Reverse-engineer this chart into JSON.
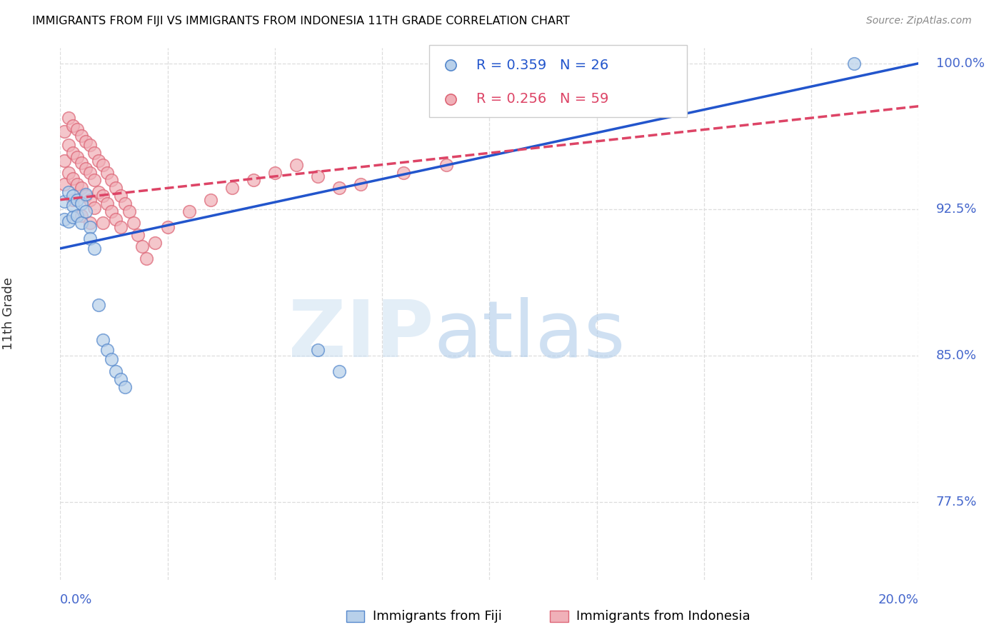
{
  "title": "IMMIGRANTS FROM FIJI VS IMMIGRANTS FROM INDONESIA 11TH GRADE CORRELATION CHART",
  "source": "Source: ZipAtlas.com",
  "ylabel": "11th Grade",
  "xmin": 0.0,
  "xmax": 0.2,
  "ymin": 0.735,
  "ymax": 1.008,
  "yticks": [
    0.775,
    0.85,
    0.925,
    1.0
  ],
  "ytick_labels": [
    "77.5%",
    "85.0%",
    "92.5%",
    "100.0%"
  ],
  "xticks": [
    0.0,
    0.025,
    0.05,
    0.075,
    0.1,
    0.125,
    0.15,
    0.175,
    0.2
  ],
  "fiji_color": "#b8d0ea",
  "fiji_edge_color": "#5588cc",
  "indonesia_color": "#f0b0b8",
  "indonesia_edge_color": "#dd6677",
  "trend_fiji_color": "#2255cc",
  "trend_indonesia_color": "#dd4466",
  "fiji_R": 0.359,
  "fiji_N": 26,
  "indonesia_R": 0.256,
  "indonesia_N": 59,
  "grid_color": "#dddddd",
  "axis_label_color": "#4466cc",
  "watermark_zip_color": "#cddff0",
  "watermark_atlas_color": "#a8c8e8",
  "fiji_x": [
    0.001,
    0.001,
    0.002,
    0.002,
    0.003,
    0.003,
    0.003,
    0.004,
    0.004,
    0.005,
    0.005,
    0.006,
    0.006,
    0.007,
    0.007,
    0.008,
    0.009,
    0.01,
    0.011,
    0.012,
    0.013,
    0.014,
    0.015,
    0.06,
    0.065,
    0.185
  ],
  "fiji_y": [
    0.929,
    0.92,
    0.934,
    0.919,
    0.932,
    0.927,
    0.921,
    0.93,
    0.922,
    0.928,
    0.918,
    0.933,
    0.924,
    0.916,
    0.91,
    0.905,
    0.876,
    0.858,
    0.853,
    0.848,
    0.842,
    0.838,
    0.834,
    0.853,
    0.842,
    1.0
  ],
  "indonesia_x": [
    0.001,
    0.001,
    0.001,
    0.002,
    0.002,
    0.002,
    0.003,
    0.003,
    0.003,
    0.003,
    0.004,
    0.004,
    0.004,
    0.005,
    0.005,
    0.005,
    0.005,
    0.006,
    0.006,
    0.006,
    0.007,
    0.007,
    0.007,
    0.007,
    0.008,
    0.008,
    0.008,
    0.009,
    0.009,
    0.01,
    0.01,
    0.01,
    0.011,
    0.011,
    0.012,
    0.012,
    0.013,
    0.013,
    0.014,
    0.014,
    0.015,
    0.016,
    0.017,
    0.018,
    0.019,
    0.02,
    0.022,
    0.025,
    0.03,
    0.035,
    0.04,
    0.045,
    0.05,
    0.055,
    0.06,
    0.065,
    0.07,
    0.08,
    0.09
  ],
  "indonesia_y": [
    0.965,
    0.95,
    0.938,
    0.972,
    0.958,
    0.944,
    0.968,
    0.954,
    0.941,
    0.93,
    0.966,
    0.952,
    0.938,
    0.963,
    0.949,
    0.936,
    0.922,
    0.96,
    0.946,
    0.932,
    0.958,
    0.944,
    0.93,
    0.918,
    0.954,
    0.94,
    0.926,
    0.95,
    0.934,
    0.948,
    0.932,
    0.918,
    0.944,
    0.928,
    0.94,
    0.924,
    0.936,
    0.92,
    0.932,
    0.916,
    0.928,
    0.924,
    0.918,
    0.912,
    0.906,
    0.9,
    0.908,
    0.916,
    0.924,
    0.93,
    0.936,
    0.94,
    0.944,
    0.948,
    0.942,
    0.936,
    0.938,
    0.944,
    0.948
  ]
}
